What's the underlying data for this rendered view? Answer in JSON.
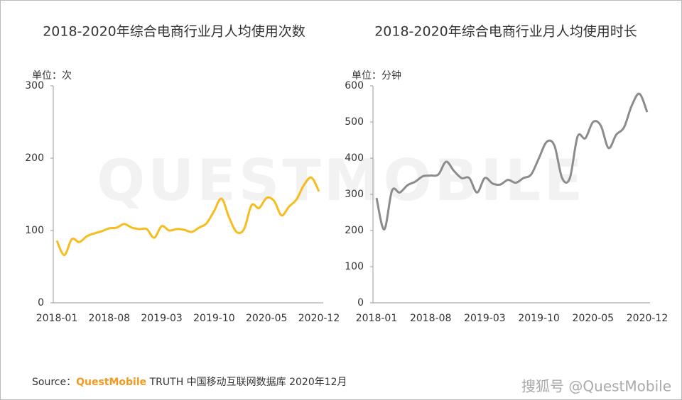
{
  "chart_data": [
    {
      "type": "line",
      "title": "2018-2020年综合电商行业月人均使用次数",
      "unit_label": "单位：次",
      "categories": [
        "2018-01",
        null,
        null,
        null,
        null,
        null,
        null,
        "2018-08",
        null,
        null,
        null,
        null,
        null,
        null,
        "2019-03",
        null,
        null,
        null,
        null,
        null,
        null,
        "2019-10",
        null,
        null,
        null,
        null,
        null,
        null,
        "2020-05",
        null,
        null,
        null,
        null,
        null,
        null,
        "2020-12"
      ],
      "series": [
        {
          "name": "月人均使用次数",
          "color": "#f7bc1f",
          "values": [
            86,
            66,
            88,
            84,
            92,
            96,
            99,
            103,
            104,
            109,
            104,
            102,
            102,
            90,
            106,
            100,
            102,
            101,
            98,
            104,
            110,
            127,
            144,
            118,
            98,
            102,
            135,
            131,
            145,
            141,
            121,
            133,
            143,
            163,
            173,
            154
          ]
        }
      ],
      "ylim": [
        0,
        300
      ],
      "yticks": [
        0,
        100,
        200,
        300
      ]
    },
    {
      "type": "line",
      "title": "2018-2020年综合电商行业月人均使用时长",
      "unit_label": "单位：分钟",
      "categories": [
        "2018-01",
        null,
        null,
        null,
        null,
        null,
        null,
        "2018-08",
        null,
        null,
        null,
        null,
        null,
        null,
        "2019-03",
        null,
        null,
        null,
        null,
        null,
        null,
        "2019-10",
        null,
        null,
        null,
        null,
        null,
        null,
        "2020-05",
        null,
        null,
        null,
        null,
        null,
        null,
        "2020-12"
      ],
      "series": [
        {
          "name": "月人均使用时长",
          "color": "#8c8c8c",
          "values": [
            290,
            203,
            310,
            305,
            325,
            335,
            350,
            352,
            355,
            390,
            365,
            345,
            345,
            305,
            345,
            330,
            327,
            340,
            332,
            345,
            355,
            400,
            445,
            435,
            345,
            345,
            460,
            455,
            500,
            490,
            428,
            465,
            485,
            545,
            578,
            527
          ]
        }
      ],
      "ylim": [
        0,
        600
      ],
      "yticks": [
        0,
        100,
        200,
        300,
        400,
        500,
        600
      ]
    }
  ],
  "source": {
    "prefix": "Source：",
    "brand": "QuestMobile",
    "rest": "TRUTH 中国移动互联网数据库 2020年12月"
  },
  "footer": "搜狐号 @QuestMobile",
  "watermark": "QUESTMOBILE"
}
